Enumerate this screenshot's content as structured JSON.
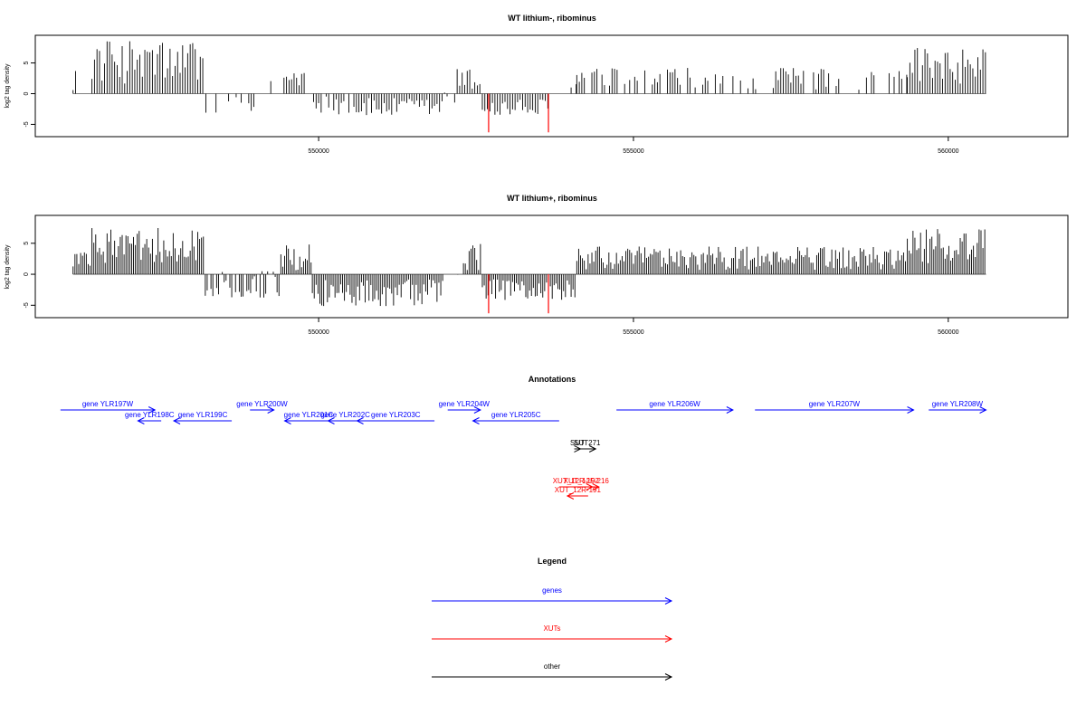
{
  "chart_data": [
    {
      "type": "bar",
      "title": "WT lithium-, ribominus",
      "ylabel": "log2 tag density",
      "xlim": [
        545500,
        561900
      ],
      "ylim": [
        -7,
        9.5
      ],
      "x_ticks": [
        550000,
        555000,
        560000
      ],
      "x_tick_labels": [
        "550000",
        "555000",
        "560000"
      ],
      "y_ticks": [
        -5,
        0,
        5
      ],
      "y_tick_labels": [
        "-5",
        "0",
        "5"
      ],
      "baseline": 0,
      "highlight_color": "#ff0000",
      "highlights": [
        {
          "x": 552700,
          "y": -6.3
        },
        {
          "x": 553650,
          "y": -6.3
        }
      ],
      "density_profile": {
        "bin_width": 40,
        "segments": [
          {
            "from": 546100,
            "to": 546160,
            "mean": 3.0,
            "spread": 2.5
          },
          {
            "from": 546400,
            "to": 548170,
            "mean": 5.2,
            "spread": 3.6
          },
          {
            "from": 548170,
            "to": 549000,
            "mean": -2.2,
            "spread": 2.0,
            "density": 0.25
          },
          {
            "from": 549000,
            "to": 549450,
            "mean": 1.5,
            "spread": 1.2,
            "density": 0.3
          },
          {
            "from": 549450,
            "to": 549800,
            "mean": 2.8,
            "spread": 2.0
          },
          {
            "from": 549800,
            "to": 550600,
            "mean": -1.8,
            "spread": 1.6,
            "density": 0.4
          },
          {
            "from": 550600,
            "to": 552000,
            "mean": -2.3,
            "spread": 1.6
          },
          {
            "from": 552000,
            "to": 552200,
            "mean": -0.5,
            "spread": 1.5,
            "density": 0.3
          },
          {
            "from": 552200,
            "to": 552600,
            "mean": 2.2,
            "spread": 2.0
          },
          {
            "from": 552600,
            "to": 553650,
            "mean": -2.4,
            "spread": 1.6
          },
          {
            "from": 553650,
            "to": 554100,
            "mean": 0.8,
            "spread": 2.0,
            "density": 0.3
          },
          {
            "from": 554100,
            "to": 559350,
            "mean": 2.4,
            "spread": 1.8,
            "density": 0.55
          },
          {
            "from": 559350,
            "to": 560600,
            "mean": 4.5,
            "spread": 3.0
          }
        ]
      }
    },
    {
      "type": "bar",
      "title": "WT lithium+, ribominus",
      "ylabel": "log2 tag density",
      "xlim": [
        545500,
        561900
      ],
      "ylim": [
        -7,
        9.5
      ],
      "x_ticks": [
        550000,
        555000,
        560000
      ],
      "x_tick_labels": [
        "550000",
        "555000",
        "560000"
      ],
      "y_ticks": [
        -5,
        0,
        5
      ],
      "y_tick_labels": [
        "-5",
        "0",
        "5"
      ],
      "baseline": 0,
      "highlight_color": "#ff0000",
      "highlights": [
        {
          "x": 552700,
          "y": -6.3
        },
        {
          "x": 553650,
          "y": -6.3
        }
      ],
      "density_profile": {
        "bin_width": 30,
        "segments": [
          {
            "from": 546100,
            "to": 546400,
            "mean": 2.5,
            "spread": 1.8
          },
          {
            "from": 546400,
            "to": 548200,
            "mean": 4.5,
            "spread": 3.0
          },
          {
            "from": 548200,
            "to": 549400,
            "mean": -1.6,
            "spread": 2.2,
            "density": 0.7
          },
          {
            "from": 549400,
            "to": 549900,
            "mean": 2.5,
            "spread": 2.4
          },
          {
            "from": 549900,
            "to": 552000,
            "mean": -3.0,
            "spread": 2.2
          },
          {
            "from": 552000,
            "to": 552300,
            "mean": -0.5,
            "spread": 1.0,
            "density": 0.2
          },
          {
            "from": 552300,
            "to": 552600,
            "mean": 2.8,
            "spread": 2.4
          },
          {
            "from": 552600,
            "to": 554100,
            "mean": -2.6,
            "spread": 1.8
          },
          {
            "from": 554100,
            "to": 559350,
            "mean": 2.6,
            "spread": 1.9
          },
          {
            "from": 559350,
            "to": 560600,
            "mean": 4.6,
            "spread": 2.8
          }
        ]
      }
    }
  ],
  "annotations": {
    "title": "Annotations",
    "genes": [
      {
        "label": "gene YLR197W",
        "from": 545900,
        "to": 547400,
        "dir": "+",
        "row": 0
      },
      {
        "label": "gene YLR198C",
        "from": 547130,
        "to": 547500,
        "dir": "-",
        "row": 1
      },
      {
        "label": "gene YLR199C",
        "from": 547700,
        "to": 548620,
        "dir": "-",
        "row": 1
      },
      {
        "label": "gene YLR200W",
        "from": 548910,
        "to": 549290,
        "dir": "+",
        "row": 0
      },
      {
        "label": "gene YLR201C",
        "from": 549460,
        "to": 550220,
        "dir": "-",
        "row": 1
      },
      {
        "label": "gene YLR202C",
        "from": 550150,
        "to": 550700,
        "dir": "-",
        "row": 1
      },
      {
        "label": "gene YLR203C",
        "from": 550610,
        "to": 551840,
        "dir": "-",
        "row": 1
      },
      {
        "label": "gene YLR204W",
        "from": 552050,
        "to": 552570,
        "dir": "+",
        "row": 0
      },
      {
        "label": "gene YLR205C",
        "from": 552450,
        "to": 553820,
        "dir": "-",
        "row": 1
      },
      {
        "label": "gene YLR206W",
        "from": 554730,
        "to": 556580,
        "dir": "+",
        "row": 0
      },
      {
        "label": "gene YLR207W",
        "from": 556930,
        "to": 559450,
        "dir": "+",
        "row": 0
      },
      {
        "label": "gene YLR208W",
        "from": 559690,
        "to": 560600,
        "dir": "+",
        "row": 0
      }
    ],
    "other": [
      {
        "label": "SUT",
        "from": 554060,
        "to": 554160,
        "dir": "+",
        "row": 0
      },
      {
        "label": "SUT271",
        "from": 554130,
        "to": 554400,
        "dir": "+",
        "row": 0
      }
    ],
    "xuts": [
      {
        "label": "XUT_12R-192",
        "from": 553820,
        "to": 554350,
        "dir": "+",
        "row": 0
      },
      {
        "label": "XUT_12F-216",
        "from": 554050,
        "to": 554450,
        "dir": "+",
        "row": 0
      },
      {
        "label": "XUT_12R-191",
        "from": 553950,
        "to": 554280,
        "dir": "-",
        "row": 1
      }
    ]
  },
  "legend": {
    "title": "Legend",
    "items": [
      {
        "label": "genes",
        "color": "#0000ff"
      },
      {
        "label": "XUTs",
        "color": "#ff0000"
      },
      {
        "label": "other",
        "color": "#000000"
      }
    ]
  },
  "colors": {
    "gene": "#0000ff",
    "xut": "#ff0000",
    "other": "#000000",
    "bar": "#000000",
    "baseline": "#555555"
  }
}
